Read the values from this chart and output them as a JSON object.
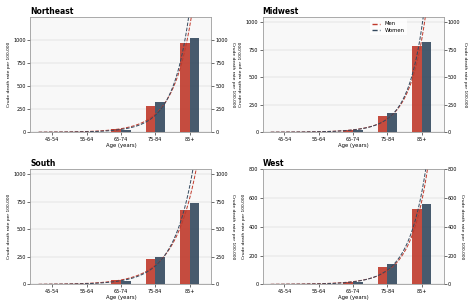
{
  "regions": [
    "Northeast",
    "Midwest",
    "South",
    "West"
  ],
  "age_groups": [
    "45-54",
    "55-64",
    "65-74",
    "75-84",
    "85+"
  ],
  "age_positions": [
    0,
    1,
    2,
    3,
    4
  ],
  "men_bars": {
    "Northeast": [
      3,
      8,
      35,
      280,
      970
    ],
    "Midwest": [
      2,
      6,
      20,
      150,
      780
    ],
    "South": [
      3,
      8,
      40,
      230,
      680
    ],
    "West": [
      2,
      5,
      18,
      120,
      520
    ]
  },
  "women_bars": {
    "Northeast": [
      2,
      5,
      25,
      330,
      1020
    ],
    "Midwest": [
      2,
      5,
      18,
      175,
      820
    ],
    "South": [
      2,
      6,
      30,
      250,
      740
    ],
    "West": [
      1,
      4,
      14,
      140,
      560
    ]
  },
  "men_color": "#c0392b",
  "women_color": "#34495e",
  "bar_width": 0.28,
  "background_color": "#ffffff",
  "panel_bg": "#f8f8f8",
  "ylabel_left": "Crude death rate per 100,000",
  "ylabel_right": "Crude death rate per 100,000",
  "xlabel": "Age (years)",
  "ylims": {
    "Northeast": [
      0,
      1250
    ],
    "Midwest": [
      0,
      1050
    ],
    "South": [
      0,
      1050
    ],
    "West": [
      0,
      800
    ]
  },
  "yticks": {
    "Northeast": [
      0,
      250,
      500,
      750,
      1000
    ],
    "Midwest": [
      0,
      250,
      500,
      750,
      1000
    ],
    "South": [
      0,
      250,
      500,
      750,
      1000
    ],
    "West": [
      0,
      200,
      400,
      600,
      800
    ]
  }
}
